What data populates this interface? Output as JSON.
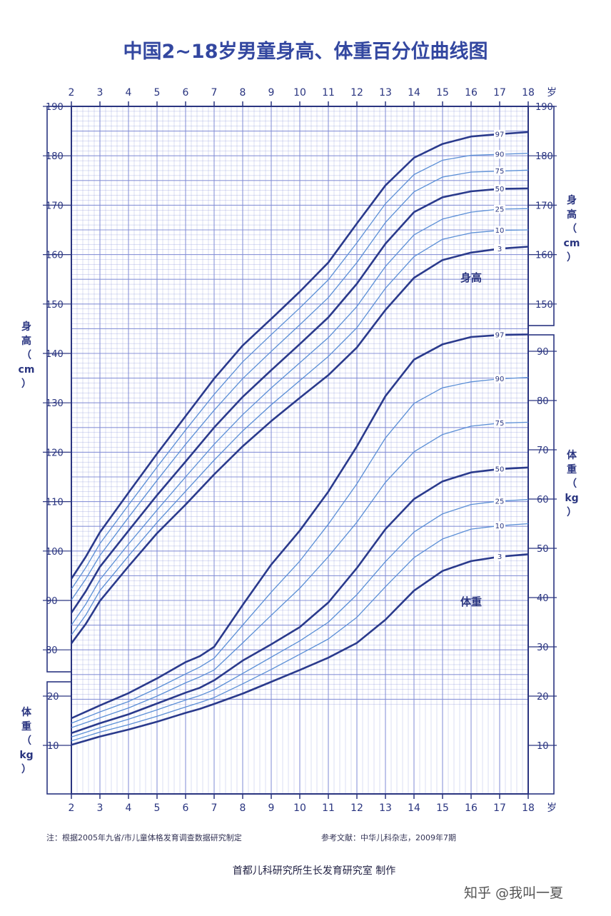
{
  "title": "中国2~18岁男童身高、体重百分位曲线图",
  "x_unit": "岁",
  "labels": {
    "height_left": [
      "身",
      "高",
      "（",
      "cm",
      "）"
    ],
    "weight_left": [
      "体",
      "重",
      "（",
      "kg",
      "）"
    ],
    "height_right": [
      "身",
      "高",
      "（",
      "cm",
      "）"
    ],
    "weight_right": [
      "体",
      "重",
      "（",
      "kg",
      "）"
    ],
    "height_caption": "身高",
    "weight_caption": "体重"
  },
  "footer": {
    "note": "注：根据2005年九省/市儿童体格发育调查数据研究制定",
    "reference": "参考文献：中华儿科杂志，2009年7期",
    "credit": "首都儿科研究所生长发育研究室  制作",
    "watermark": "知乎 @我叫一夏"
  },
  "colors": {
    "grid": "#7f8ad4",
    "frame": "#2a3580",
    "major_curve": "#2a3a8c",
    "minor_curve": "#5b8fd6"
  },
  "chart_data": {
    "type": "line",
    "x_ticks": [
      2,
      3,
      4,
      5,
      6,
      7,
      8,
      9,
      10,
      11,
      12,
      13,
      14,
      15,
      16,
      17,
      18
    ],
    "height": {
      "ylim": [
        75,
        190
      ],
      "ticks_left": [
        80,
        90,
        100,
        110,
        120,
        130,
        140,
        150,
        160,
        170,
        180,
        190
      ],
      "ticks_right": [
        150,
        160,
        170,
        180,
        190
      ],
      "x": [
        2,
        2.5,
        3,
        4,
        5,
        6,
        7,
        8,
        9,
        10,
        11,
        12,
        13,
        14,
        15,
        16,
        17,
        18
      ],
      "series": [
        {
          "name": "97",
          "major": true,
          "values": [
            94.4,
            98.8,
            103.8,
            111.8,
            119.7,
            127.3,
            134.9,
            141.6,
            147.0,
            152.5,
            158.4,
            166.3,
            174.0,
            179.6,
            182.4,
            183.9,
            184.4,
            184.8
          ]
        },
        {
          "name": "90",
          "major": false,
          "values": [
            92.3,
            96.6,
            101.5,
            109.3,
            117.0,
            124.5,
            131.7,
            138.3,
            143.8,
            149.2,
            154.9,
            162.4,
            170.3,
            176.2,
            179.1,
            180.1,
            180.3,
            180.5
          ]
        },
        {
          "name": "75",
          "major": false,
          "values": [
            90.1,
            94.3,
            99.1,
            106.8,
            114.3,
            121.6,
            128.5,
            134.9,
            140.4,
            145.8,
            151.3,
            158.4,
            166.5,
            172.7,
            175.7,
            176.7,
            176.9,
            177.1
          ]
        },
        {
          "name": "50",
          "major": true,
          "values": [
            87.5,
            91.8,
            96.8,
            104.1,
            111.3,
            118.1,
            125.0,
            131.2,
            136.6,
            141.9,
            147.3,
            154.1,
            162.2,
            168.6,
            171.6,
            172.8,
            173.3,
            173.4
          ]
        },
        {
          "name": "25",
          "major": false,
          "values": [
            85.0,
            89.2,
            94.2,
            101.4,
            108.3,
            115.0,
            121.6,
            127.6,
            133.0,
            138.1,
            143.2,
            149.5,
            157.6,
            164.0,
            167.2,
            168.6,
            169.2,
            169.3
          ]
        },
        {
          "name": "10",
          "major": false,
          "values": [
            83.0,
            87.0,
            92.0,
            99.0,
            105.8,
            112.1,
            118.4,
            124.3,
            129.6,
            134.5,
            139.4,
            145.2,
            153.2,
            159.6,
            163.1,
            164.4,
            164.9,
            165.0
          ]
        },
        {
          "name": "3",
          "major": true,
          "values": [
            81.3,
            85.2,
            89.9,
            96.9,
            103.6,
            109.4,
            115.5,
            121.2,
            126.3,
            131.0,
            135.6,
            141.2,
            148.8,
            155.3,
            158.9,
            160.4,
            161.2,
            161.6
          ]
        }
      ]
    },
    "weight": {
      "ylim": [
        3,
        100
      ],
      "ticks_left": [
        10,
        20
      ],
      "ticks_right": [
        10,
        20,
        30,
        40,
        50,
        60,
        70,
        80,
        90
      ],
      "x": [
        2,
        3,
        4,
        5,
        6,
        6.5,
        7,
        8,
        9,
        10,
        11,
        12,
        13,
        14,
        15,
        16,
        17,
        18
      ],
      "series": [
        {
          "name": "97",
          "major": true,
          "values": [
            15.5,
            18.1,
            20.6,
            23.6,
            26.9,
            28.1,
            30.0,
            38.5,
            46.7,
            53.6,
            61.5,
            70.7,
            80.9,
            88.3,
            91.4,
            92.9,
            93.3,
            93.4
          ]
        },
        {
          "name": "90",
          "major": false,
          "values": [
            14.5,
            16.8,
            18.9,
            21.6,
            24.5,
            25.9,
            27.7,
            34.4,
            41.1,
            47.4,
            54.9,
            63.1,
            72.4,
            79.4,
            82.6,
            83.8,
            84.4,
            84.7
          ]
        },
        {
          "name": "75",
          "major": false,
          "values": [
            13.6,
            15.6,
            17.6,
            20.0,
            22.7,
            23.9,
            25.3,
            30.8,
            36.4,
            41.9,
            48.3,
            55.3,
            63.4,
            69.6,
            73.1,
            74.8,
            75.4,
            75.6
          ]
        },
        {
          "name": "50",
          "major": true,
          "values": [
            12.5,
            14.5,
            16.3,
            18.5,
            20.7,
            21.7,
            23.2,
            27.2,
            30.5,
            34.0,
            39.0,
            46.0,
            53.9,
            60.0,
            63.6,
            65.4,
            66.1,
            66.4
          ]
        },
        {
          "name": "25",
          "major": false,
          "values": [
            11.7,
            13.6,
            15.3,
            17.2,
            19.2,
            20.1,
            21.3,
            24.6,
            27.9,
            31.2,
            35.0,
            40.6,
            47.3,
            53.3,
            57.0,
            58.9,
            59.6,
            59.9
          ]
        },
        {
          "name": "10",
          "major": false,
          "values": [
            10.9,
            12.7,
            14.2,
            15.9,
            17.8,
            18.7,
            19.7,
            22.5,
            25.4,
            28.5,
            31.6,
            36.0,
            42.2,
            48.1,
            51.9,
            53.9,
            54.6,
            55.0
          ]
        },
        {
          "name": "3",
          "major": true,
          "values": [
            10.1,
            11.8,
            13.2,
            14.8,
            16.6,
            17.4,
            18.4,
            20.5,
            22.9,
            25.3,
            27.8,
            30.8,
            35.5,
            41.4,
            45.4,
            47.4,
            48.3,
            48.8
          ]
        }
      ]
    }
  }
}
